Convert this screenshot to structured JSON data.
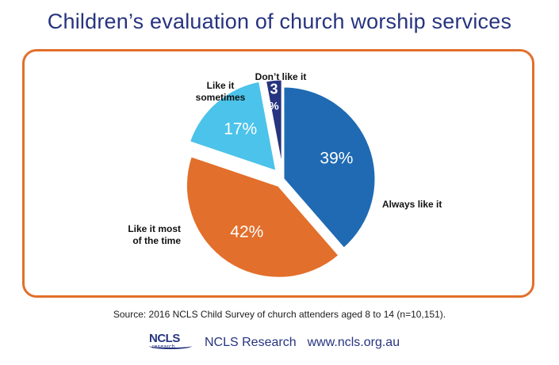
{
  "title": "Children’s evaluation of church worship services",
  "source": "Source: 2016 NCLS Child Survey of church attenders aged 8 to 14 (n=10,151).",
  "footer": {
    "logo_text": "NCLS",
    "logo_sub": "research",
    "org": "NCLS Research",
    "url": "www.ncls.org.au"
  },
  "colors": {
    "always": "#1f6ab3",
    "most": "#e26f2b",
    "sometimes": "#4bc3ea",
    "dont": "#27347f",
    "frame": "#e26f2b",
    "title": "#27347f"
  },
  "chart_data": {
    "type": "pie",
    "title": "Children’s evaluation of church worship services",
    "start_angle_deg": 0,
    "direction": "clockwise",
    "slices": [
      {
        "label": "Always like it",
        "value": 39,
        "value_label": "39%",
        "color": "#1f6ab3",
        "exploded": false
      },
      {
        "label": "Like it most of the time",
        "label_lines": [
          "Like it most",
          "of the time"
        ],
        "value": 42,
        "value_label": "42%",
        "color": "#e26f2b",
        "exploded": true
      },
      {
        "label": "Like it sometimes",
        "label_lines": [
          "Like it",
          "sometimes"
        ],
        "value": 17,
        "value_label": "17%",
        "color": "#4bc3ea",
        "exploded": true
      },
      {
        "label": "Don’t like it",
        "value": 3,
        "value_label_lines": [
          "3",
          "%"
        ],
        "color": "#27347f",
        "exploded": true
      }
    ]
  }
}
